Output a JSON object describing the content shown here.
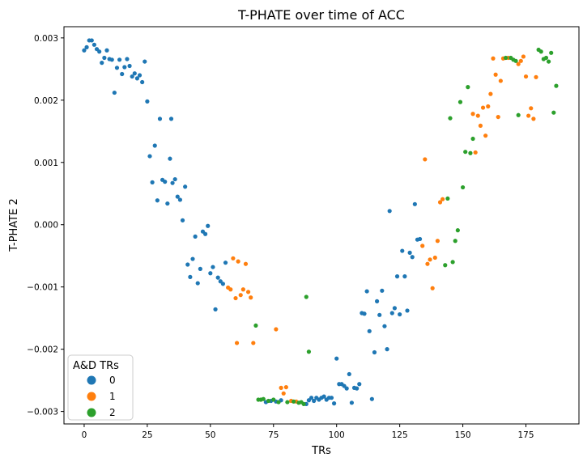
{
  "chart_data": {
    "type": "scatter",
    "title": "T-PHATE over time of ACC",
    "xlabel": "TRs",
    "ylabel": "T-PHATE 2",
    "xlim": [
      -8,
      196
    ],
    "ylim": [
      -0.0032,
      0.00318
    ],
    "x_ticks": [
      0,
      25,
      50,
      75,
      100,
      125,
      150,
      175
    ],
    "y_ticks": [
      -0.003,
      -0.002,
      -0.001,
      0.0,
      0.001,
      0.002,
      0.003
    ],
    "y_tick_labels": [
      "−0.003",
      "−0.002",
      "−0.001",
      "0.000",
      "0.001",
      "0.002",
      "0.003"
    ],
    "grid": false,
    "legend": {
      "title": "A&D TRs",
      "placement": "lower-left",
      "entries": [
        "0",
        "1",
        "2"
      ]
    },
    "colors": {
      "0": "#1f77b4",
      "1": "#ff7f0e",
      "2": "#2ca02c"
    },
    "series": [
      {
        "name": "0",
        "points": [
          [
            0,
            0.0028
          ],
          [
            1,
            0.00285
          ],
          [
            2,
            0.00296
          ],
          [
            3,
            0.00296
          ],
          [
            4,
            0.00289
          ],
          [
            5,
            0.00282
          ],
          [
            6,
            0.00278
          ],
          [
            7,
            0.0026
          ],
          [
            8,
            0.00268
          ],
          [
            9,
            0.0028
          ],
          [
            10,
            0.00266
          ],
          [
            11,
            0.00265
          ],
          [
            12,
            0.00212
          ],
          [
            13,
            0.00252
          ],
          [
            14,
            0.00265
          ],
          [
            15,
            0.00242
          ],
          [
            16,
            0.00253
          ],
          [
            17,
            0.00266
          ],
          [
            18,
            0.00255
          ],
          [
            19,
            0.00238
          ],
          [
            20,
            0.00243
          ],
          [
            21,
            0.00235
          ],
          [
            22,
            0.0024
          ],
          [
            23,
            0.00229
          ],
          [
            24,
            0.00262
          ],
          [
            25,
            0.00198
          ],
          [
            26,
            0.0011
          ],
          [
            27,
            0.00068
          ],
          [
            28,
            0.00127
          ],
          [
            29,
            0.00039
          ],
          [
            30,
            0.0017
          ],
          [
            31,
            0.00072
          ],
          [
            32,
            0.00069
          ],
          [
            33,
            0.00034
          ],
          [
            34,
            0.00106
          ],
          [
            34.5,
            0.0017
          ],
          [
            35,
            0.00067
          ],
          [
            36,
            0.00073
          ],
          [
            37,
            0.00045
          ],
          [
            38,
            0.0004
          ],
          [
            39,
            7e-05
          ],
          [
            40,
            0.00061
          ],
          [
            41,
            -0.00064
          ],
          [
            42,
            -0.00084
          ],
          [
            43,
            -0.00055
          ],
          [
            44,
            -0.00019
          ],
          [
            45,
            -0.00094
          ],
          [
            46,
            -0.00071
          ],
          [
            47,
            -0.00011
          ],
          [
            48,
            -0.00015
          ],
          [
            49,
            -2e-05
          ],
          [
            50,
            -0.00078
          ],
          [
            51,
            -0.00068
          ],
          [
            52,
            -0.00136
          ],
          [
            53,
            -0.00085
          ],
          [
            54,
            -0.00091
          ],
          [
            55,
            -0.00095
          ],
          [
            56,
            -0.00061
          ],
          [
            72,
            -0.00285
          ],
          [
            74,
            -0.00283
          ],
          [
            76,
            -0.00284
          ],
          [
            78,
            -0.00282
          ],
          [
            88,
            -0.00288
          ],
          [
            89,
            -0.00282
          ],
          [
            90,
            -0.00278
          ],
          [
            91,
            -0.00283
          ],
          [
            92,
            -0.00278
          ],
          [
            93,
            -0.00281
          ],
          [
            94,
            -0.00278
          ],
          [
            95,
            -0.00276
          ],
          [
            96,
            -0.00281
          ],
          [
            97,
            -0.00278
          ],
          [
            98,
            -0.00278
          ],
          [
            99,
            -0.00287
          ],
          [
            100,
            -0.00215
          ],
          [
            101,
            -0.00256
          ],
          [
            102,
            -0.00256
          ],
          [
            103,
            -0.00259
          ],
          [
            104,
            -0.00263
          ],
          [
            105,
            -0.0024
          ],
          [
            106,
            -0.00286
          ],
          [
            107,
            -0.00262
          ],
          [
            108,
            -0.00263
          ],
          [
            109,
            -0.00256
          ],
          [
            110,
            -0.00142
          ],
          [
            111,
            -0.00143
          ],
          [
            112,
            -0.00107
          ],
          [
            113,
            -0.00171
          ],
          [
            114,
            -0.0028
          ],
          [
            115,
            -0.00205
          ],
          [
            116,
            -0.00123
          ],
          [
            117,
            -0.00145
          ],
          [
            118,
            -0.00106
          ],
          [
            119,
            -0.00163
          ],
          [
            120,
            -0.002
          ],
          [
            121,
            0.00022
          ],
          [
            122,
            -0.00142
          ],
          [
            123,
            -0.00134
          ],
          [
            124,
            -0.00083
          ],
          [
            125,
            -0.00144
          ],
          [
            126,
            -0.00042
          ],
          [
            127,
            -0.00083
          ],
          [
            128,
            -0.00138
          ],
          [
            129,
            -0.00045
          ],
          [
            130,
            -0.00052
          ],
          [
            131,
            0.00033
          ],
          [
            132,
            -0.00024
          ],
          [
            133,
            -0.00023
          ]
        ]
      },
      {
        "name": "1",
        "points": [
          [
            57,
            -0.00101
          ],
          [
            58,
            -0.00104
          ],
          [
            59,
            -0.00054
          ],
          [
            60,
            -0.00118
          ],
          [
            60.5,
            -0.0019
          ],
          [
            61,
            -0.00059
          ],
          [
            62,
            -0.00113
          ],
          [
            63,
            -0.00104
          ],
          [
            64,
            -0.00063
          ],
          [
            65,
            -0.00108
          ],
          [
            66,
            -0.00117
          ],
          [
            67,
            -0.0019
          ],
          [
            76,
            -0.00168
          ],
          [
            78,
            -0.00262
          ],
          [
            79,
            -0.00271
          ],
          [
            80,
            -0.00261
          ],
          [
            82,
            -0.00283
          ],
          [
            84,
            -0.00284
          ],
          [
            134,
            -0.00034
          ],
          [
            135,
            0.00105
          ],
          [
            136,
            -0.00063
          ],
          [
            137,
            -0.00056
          ],
          [
            138,
            -0.00102
          ],
          [
            139,
            -0.00053
          ],
          [
            140,
            -0.00026
          ],
          [
            141,
            0.00036
          ],
          [
            142,
            0.00041
          ],
          [
            154,
            0.00178
          ],
          [
            155,
            0.00116
          ],
          [
            156,
            0.00175
          ],
          [
            157,
            0.00159
          ],
          [
            158,
            0.00188
          ],
          [
            159,
            0.00143
          ],
          [
            160,
            0.0019
          ],
          [
            161,
            0.0021
          ],
          [
            162,
            0.00267
          ],
          [
            163,
            0.00241
          ],
          [
            164,
            0.00173
          ],
          [
            165,
            0.00231
          ],
          [
            166,
            0.00267
          ],
          [
            168,
            0.00268
          ],
          [
            172,
            0.00258
          ],
          [
            173,
            0.00263
          ],
          [
            174,
            0.0027
          ],
          [
            175,
            0.00238
          ],
          [
            176,
            0.00175
          ],
          [
            177,
            0.00187
          ],
          [
            178,
            0.0017
          ],
          [
            179,
            0.00237
          ]
        ]
      },
      {
        "name": "2",
        "points": [
          [
            68,
            -0.00162
          ],
          [
            69,
            -0.00281
          ],
          [
            70,
            -0.00281
          ],
          [
            71,
            -0.0028
          ],
          [
            73,
            -0.00283
          ],
          [
            75,
            -0.00281
          ],
          [
            77,
            -0.00285
          ],
          [
            80.5,
            -0.00285
          ],
          [
            83,
            -0.00284
          ],
          [
            85,
            -0.00286
          ],
          [
            86,
            -0.00285
          ],
          [
            87,
            -0.00288
          ],
          [
            88,
            -0.00116
          ],
          [
            89,
            -0.00204
          ],
          [
            143,
            -0.00065
          ],
          [
            144,
            0.00042
          ],
          [
            145,
            0.00171
          ],
          [
            146,
            -0.0006
          ],
          [
            147,
            -0.00026
          ],
          [
            148,
            -9e-05
          ],
          [
            149,
            0.00197
          ],
          [
            150,
            0.0006
          ],
          [
            151,
            0.00117
          ],
          [
            152,
            0.00221
          ],
          [
            153,
            0.00115
          ],
          [
            154,
            0.00138
          ],
          [
            167,
            0.00268
          ],
          [
            169,
            0.00268
          ],
          [
            170,
            0.00265
          ],
          [
            171,
            0.00263
          ],
          [
            172,
            0.00176
          ],
          [
            180,
            0.00281
          ],
          [
            181,
            0.00278
          ],
          [
            182,
            0.00266
          ],
          [
            183,
            0.00268
          ],
          [
            184,
            0.00262
          ],
          [
            185,
            0.00276
          ],
          [
            186,
            0.0018
          ],
          [
            187,
            0.00223
          ]
        ]
      }
    ]
  }
}
